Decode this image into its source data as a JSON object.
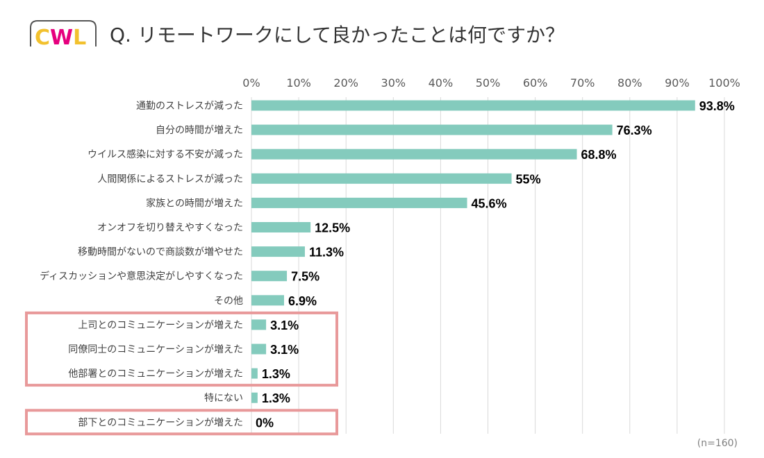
{
  "title": "Q. リモートワークにして良かったことは何ですか？",
  "logo": {
    "text": "CWL",
    "colors": [
      "#f2c12e",
      "#e6007e",
      "#f2c12e"
    ]
  },
  "note": "(n=160)",
  "colors": {
    "bar": "#84cbbd",
    "highlight_box": "#e8999a",
    "grid": "#d9d9d9"
  },
  "chart_data": {
    "type": "bar",
    "orientation": "horizontal",
    "xlim": [
      0,
      100
    ],
    "x_ticks": [
      0,
      10,
      20,
      30,
      40,
      50,
      60,
      70,
      80,
      90,
      100
    ],
    "x_tick_labels": [
      "0%",
      "10%",
      "20%",
      "30%",
      "40%",
      "50%",
      "60%",
      "70%",
      "80%",
      "90%",
      "100%"
    ],
    "categories": [
      "通勤のストレスが減った",
      "自分の時間が増えた",
      "ウイルス感染に対する不安が減った",
      "人間関係によるストレスが減った",
      "家族との時間が増えた",
      "オンオフを切り替えやすくなった",
      "移動時間がないので商談数が増やせた",
      "ディスカッションや意思決定がしやすくなった",
      "その他",
      "上司とのコミュニケーションが増えた",
      "同僚同士のコミュニケーションが増えた",
      "他部署とのコミュニケーションが増えた",
      "特にない",
      "部下とのコミュニケーションが増えた"
    ],
    "values": [
      93.8,
      76.3,
      68.8,
      55,
      45.6,
      12.5,
      11.3,
      7.5,
      6.9,
      3.1,
      3.1,
      1.3,
      1.3,
      0
    ],
    "value_labels": [
      "93.8%",
      "76.3%",
      "68.8%",
      "55%",
      "45.6%",
      "12.5%",
      "11.3%",
      "7.5%",
      "6.9%",
      "3.1%",
      "3.1%",
      "1.3%",
      "1.3%",
      "0%"
    ],
    "highlight_groups": [
      [
        9,
        11
      ],
      [
        13,
        13
      ]
    ]
  }
}
